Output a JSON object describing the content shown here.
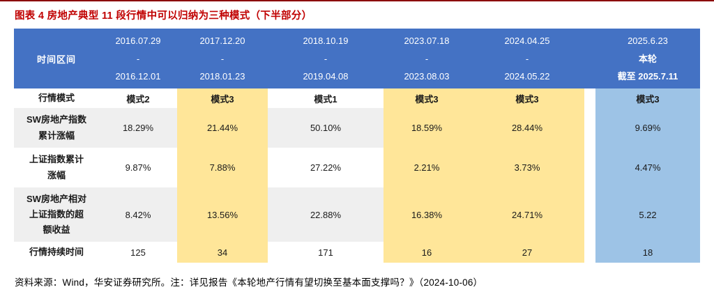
{
  "title": "图表 4  房地产典型 11 段行情中可以归纳为三种模式（下半部分）",
  "header_label": "时间区间",
  "periods": [
    {
      "start": "2016.07.29",
      "mid": "-",
      "end": "2016.12.01"
    },
    {
      "start": "2017.12.20",
      "mid": "-",
      "end": "2018.01.23"
    },
    {
      "start": "2018.10.19",
      "mid": "-",
      "end": "2019.04.08"
    },
    {
      "start": "2023.07.18",
      "mid": "-",
      "end": "2023.08.03"
    },
    {
      "start": "2024.04.25",
      "mid": "-",
      "end": "2024.05.22"
    },
    {
      "start": "2025.6.23",
      "mid": "本轮",
      "end": "截至 2025.7.11"
    }
  ],
  "rows": [
    {
      "label": "行情模式",
      "values": [
        "模式2",
        "模式3",
        "模式1",
        "模式3",
        "模式3",
        "模式3"
      ]
    },
    {
      "label": "SW房地产指数\n累计涨幅",
      "values": [
        "18.29%",
        "21.44%",
        "50.10%",
        "18.59%",
        "28.44%",
        "9.69%"
      ]
    },
    {
      "label": "上证指数累计\n涨幅",
      "values": [
        "9.87%",
        "7.88%",
        "27.22%",
        "2.21%",
        "3.73%",
        "4.47%"
      ]
    },
    {
      "label": "SW房地产相对\n上证指数的超\n额收益",
      "values": [
        "8.42%",
        "13.56%",
        "22.88%",
        "16.38%",
        "24.71%",
        "5.22"
      ]
    },
    {
      "label": "行情持续时间",
      "values": [
        "125",
        "34",
        "171",
        "16",
        "27",
        "18"
      ]
    }
  ],
  "source": "资料来源：Wind，华安证券研究所。注：详见报告《本轮地产行情有望切换至基本面支撑吗？》（2024-10-06）",
  "colors": {
    "title_red": "#C00000",
    "header_blue": "#4472C4",
    "highlight_yellow": "#FFE699",
    "highlight_blue": "#9DC3E6",
    "stripe_gray": "#EFEFEF"
  }
}
